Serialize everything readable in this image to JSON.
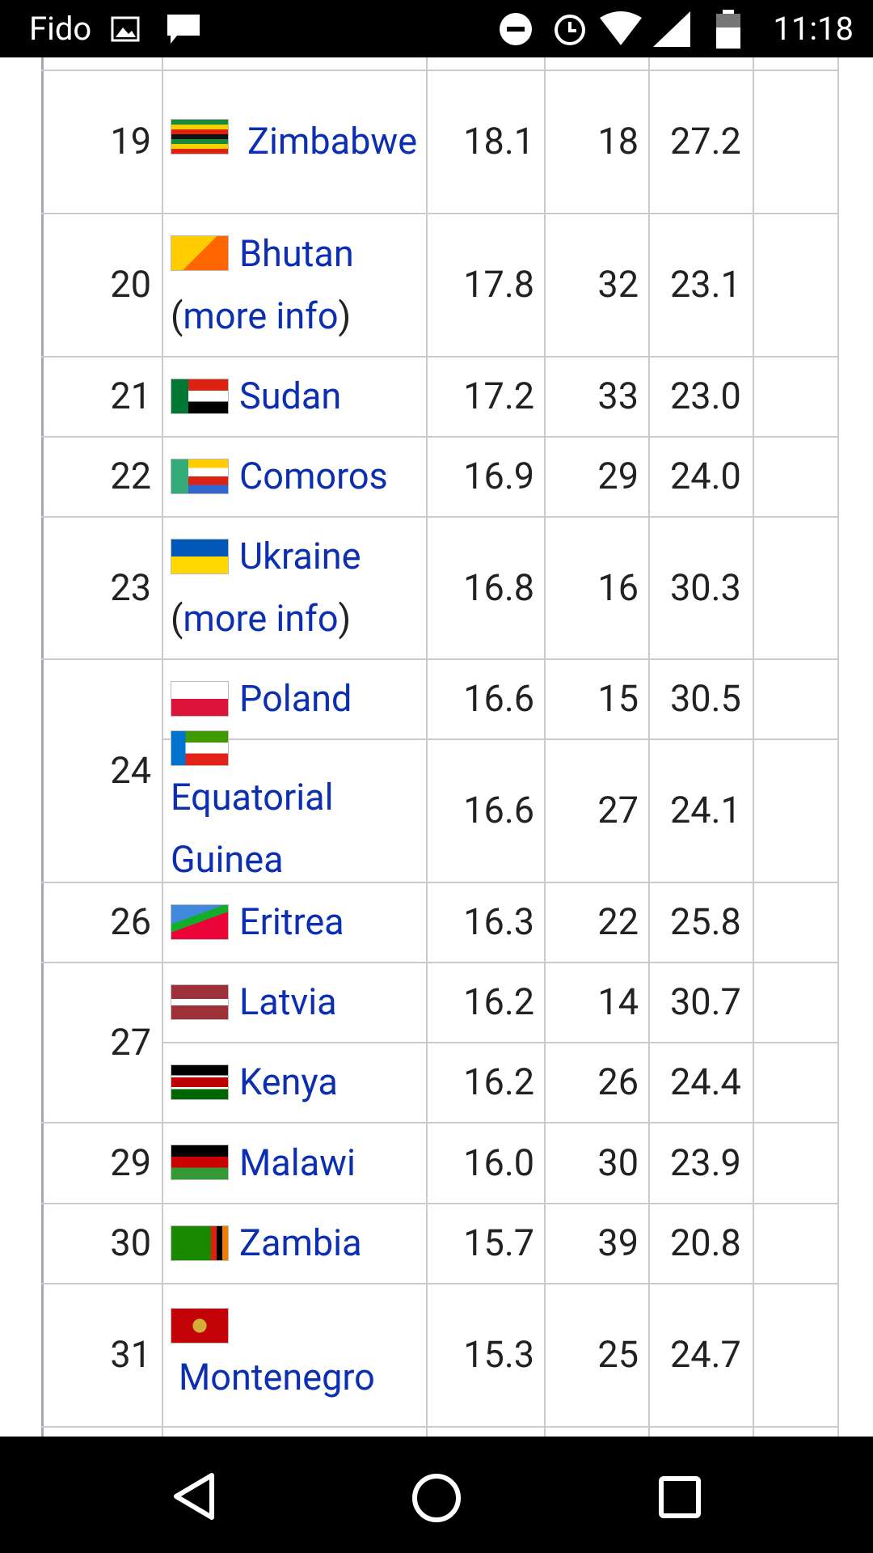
{
  "status_bar": {
    "carrier": "Fido",
    "time": "11:18"
  },
  "table": {
    "rows": [
      {
        "rank": "19",
        "entries": [
          {
            "country": "Zimbabwe",
            "col3": "18.1",
            "col4": "18",
            "col5": "27.2"
          }
        ]
      },
      {
        "rank": "20",
        "entries": [
          {
            "country": "Bhutan",
            "more_info": {
              "open": "(",
              "link": "more info",
              "close": ")"
            },
            "col3": "17.8",
            "col4": "32",
            "col5": "23.1"
          }
        ]
      },
      {
        "rank": "21",
        "entries": [
          {
            "country": "Sudan",
            "col3": "17.2",
            "col4": "33",
            "col5": "23.0"
          }
        ]
      },
      {
        "rank": "22",
        "entries": [
          {
            "country": "Comoros",
            "col3": "16.9",
            "col4": "29",
            "col5": "24.0"
          }
        ]
      },
      {
        "rank": "23",
        "entries": [
          {
            "country": "Ukraine",
            "more_info": {
              "open": "(",
              "link": "more info",
              "close": ")"
            },
            "col3": "16.8",
            "col4": "16",
            "col5": "30.3"
          }
        ]
      },
      {
        "rank": "24",
        "entries": [
          {
            "country": "Poland",
            "col3": "16.6",
            "col4": "15",
            "col5": "30.5"
          },
          {
            "country": "Equatorial Guinea",
            "col3": "16.6",
            "col4": "27",
            "col5": "24.1"
          }
        ]
      },
      {
        "rank": "26",
        "entries": [
          {
            "country": "Eritrea",
            "col3": "16.3",
            "col4": "22",
            "col5": "25.8"
          }
        ]
      },
      {
        "rank": "27",
        "entries": [
          {
            "country": "Latvia",
            "col3": "16.2",
            "col4": "14",
            "col5": "30.7"
          },
          {
            "country": "Kenya",
            "col3": "16.2",
            "col4": "26",
            "col5": "24.4"
          }
        ]
      },
      {
        "rank": "29",
        "entries": [
          {
            "country": "Malawi",
            "col3": "16.0",
            "col4": "30",
            "col5": "23.9"
          }
        ]
      },
      {
        "rank": "30",
        "entries": [
          {
            "country": "Zambia",
            "col3": "15.7",
            "col4": "39",
            "col5": "20.8"
          }
        ]
      },
      {
        "rank": "31",
        "entries": [
          {
            "country": "Montenegro",
            "col3": "15.3",
            "col4": "25",
            "col5": "24.7"
          }
        ]
      }
    ]
  }
}
